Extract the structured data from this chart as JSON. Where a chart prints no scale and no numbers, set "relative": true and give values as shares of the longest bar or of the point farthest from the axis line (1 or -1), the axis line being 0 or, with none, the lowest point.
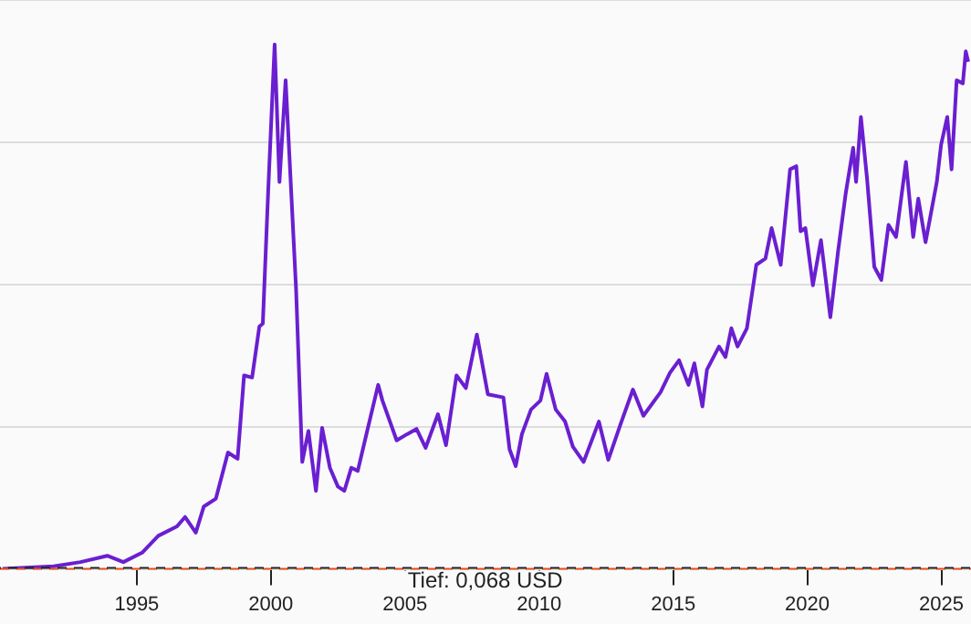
{
  "chart_data": {
    "type": "line",
    "relative": true,
    "grid": "y",
    "xlim": [
      1989.9,
      2026.1
    ],
    "xticks": [
      1995,
      2000,
      2005,
      2010,
      2015,
      2020,
      2025
    ],
    "x": [
      1990.0,
      1991.9,
      1992.9,
      1993.9,
      1994.5,
      1995.2,
      1995.8,
      1996.5,
      1996.8,
      1997.2,
      1997.5,
      1997.95,
      1998.4,
      1998.76,
      1999.0,
      1999.3,
      1999.57,
      1999.7,
      1999.9,
      2000.14,
      2000.32,
      2000.55,
      2000.94,
      2001.17,
      2001.4,
      2001.68,
      2001.91,
      2002.2,
      2002.5,
      2002.74,
      2003.0,
      2003.24,
      2003.59,
      2004.0,
      2004.16,
      2004.69,
      2005.08,
      2005.43,
      2005.77,
      2006.23,
      2006.53,
      2006.92,
      2007.27,
      2007.68,
      2008.09,
      2008.67,
      2008.9,
      2009.13,
      2009.36,
      2009.7,
      2010.05,
      2010.28,
      2010.62,
      2010.97,
      2011.26,
      2011.66,
      2012.23,
      2012.58,
      2013.03,
      2013.5,
      2013.89,
      2014.53,
      2014.88,
      2015.22,
      2015.57,
      2015.79,
      2016.09,
      2016.26,
      2016.71,
      2016.95,
      2017.17,
      2017.4,
      2017.75,
      2018.1,
      2018.44,
      2018.67,
      2019.01,
      2019.36,
      2019.59,
      2019.75,
      2019.93,
      2020.21,
      2020.51,
      2020.86,
      2021.15,
      2021.43,
      2021.71,
      2021.82,
      2022.0,
      2022.23,
      2022.5,
      2022.76,
      2023.03,
      2023.31,
      2023.68,
      2023.95,
      2024.14,
      2024.41,
      2024.83,
      2024.99,
      2025.22,
      2025.38,
      2025.57,
      2025.8,
      2025.91,
      2026.0
    ],
    "series": [
      {
        "color": "#6a1fd1",
        "values": [
          0,
          0.005,
          0.013,
          0.025,
          0.013,
          0.031,
          0.063,
          0.081,
          0.099,
          0.069,
          0.119,
          0.134,
          0.222,
          0.21,
          0.369,
          0.365,
          0.462,
          0.468,
          0.721,
          1,
          0.738,
          0.932,
          0.533,
          0.204,
          0.263,
          0.149,
          0.269,
          0.193,
          0.157,
          0.149,
          0.193,
          0.187,
          0.263,
          0.351,
          0.321,
          0.245,
          0.257,
          0.267,
          0.231,
          0.295,
          0.236,
          0.369,
          0.345,
          0.447,
          0.333,
          0.327,
          0.228,
          0.196,
          0.257,
          0.304,
          0.321,
          0.372,
          0.304,
          0.281,
          0.233,
          0.204,
          0.281,
          0.208,
          0.275,
          0.342,
          0.292,
          0.337,
          0.374,
          0.398,
          0.351,
          0.392,
          0.31,
          0.38,
          0.424,
          0.404,
          0.459,
          0.424,
          0.459,
          0.58,
          0.592,
          0.65,
          0.58,
          0.762,
          0.768,
          0.644,
          0.65,
          0.541,
          0.627,
          0.48,
          0.606,
          0.715,
          0.803,
          0.738,
          0.862,
          0.744,
          0.576,
          0.551,
          0.656,
          0.633,
          0.776,
          0.633,
          0.706,
          0.623,
          0.738,
          0.809,
          0.862,
          0.762,
          0.932,
          0.926,
          0.987,
          0.967
        ]
      }
    ],
    "ref_lines": [
      {
        "axis": "y",
        "value": 0,
        "color": "#e8501a",
        "line_style": "dashed"
      }
    ],
    "annotations": [
      "Tief: 0,068 USD"
    ]
  }
}
